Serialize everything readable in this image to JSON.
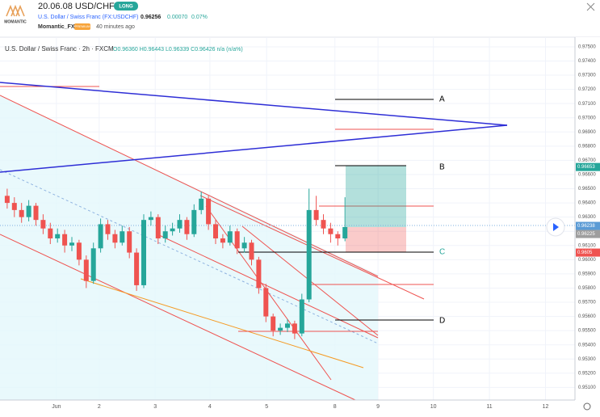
{
  "header": {
    "title": "20.06.08 USD/CHF",
    "badge": "LONG",
    "symbol": "U.S. Dollar / Swiss Franc (FX:USDCHF)",
    "price": "0.96256",
    "change": "0.00070",
    "change_pct": "0.07%",
    "logo": "MOMANTIC",
    "author": "Momantic_FX",
    "author_badge": "PREMIUM",
    "time": "40 minutes ago"
  },
  "chart_data": {
    "type": "candlestick",
    "title": "U.S. Dollar / Swiss Franc · 2h · FXCM",
    "subtitle": "O0.96360 H0.96443 L0.96339 C0.96426 n/a (n/a%)",
    "open": [
      0.9645,
      0.964,
      0.9635,
      0.963,
      0.9638,
      0.9628,
      0.9622,
      0.9615,
      0.9618,
      0.961,
      0.9612,
      0.96,
      0.9585,
      0.9608,
      0.9625,
      0.9618,
      0.9612,
      0.962,
      0.9605,
      0.9582,
      0.9628,
      0.963,
      0.9615,
      0.962,
      0.9622,
      0.9628,
      0.9618,
      0.9635,
      0.9643,
      0.9625,
      0.9615,
      0.9612,
      0.962,
      0.9608,
      0.9612,
      0.96,
      0.958,
      0.956,
      0.955,
      0.9552,
      0.9555,
      0.9548,
      0.9572,
      0.9635,
      0.9628,
      0.9622,
      0.9618,
      0.9615
    ],
    "high": [
      0.965,
      0.9644,
      0.964,
      0.9642,
      0.964,
      0.9632,
      0.9626,
      0.9622,
      0.9621,
      0.9616,
      0.9614,
      0.9603,
      0.9612,
      0.9629,
      0.9628,
      0.9621,
      0.9624,
      0.9623,
      0.9608,
      0.9632,
      0.9634,
      0.9632,
      0.9624,
      0.9626,
      0.9632,
      0.963,
      0.9639,
      0.9648,
      0.9645,
      0.9628,
      0.9618,
      0.9624,
      0.9622,
      0.9616,
      0.9614,
      0.9602,
      0.9583,
      0.9562,
      0.9555,
      0.9558,
      0.9557,
      0.9576,
      0.965,
      0.9645,
      0.9632,
      0.9626,
      0.962,
      0.9644
    ],
    "low": [
      0.9636,
      0.963,
      0.9626,
      0.9627,
      0.9624,
      0.9618,
      0.9611,
      0.9612,
      0.9605,
      0.9606,
      0.9596,
      0.958,
      0.9583,
      0.9605,
      0.9614,
      0.9608,
      0.961,
      0.9601,
      0.9578,
      0.958,
      0.9624,
      0.9611,
      0.9612,
      0.9617,
      0.9619,
      0.9614,
      0.9616,
      0.9632,
      0.9621,
      0.9611,
      0.9608,
      0.961,
      0.9604,
      0.9605,
      0.9596,
      0.9576,
      0.9556,
      0.9546,
      0.9547,
      0.9549,
      0.9544,
      0.9546,
      0.957,
      0.9624,
      0.9618,
      0.9612,
      0.961,
      0.9613
    ],
    "close": [
      0.964,
      0.9635,
      0.963,
      0.9638,
      0.9628,
      0.9622,
      0.9615,
      0.9618,
      0.961,
      0.9612,
      0.96,
      0.9585,
      0.9608,
      0.9625,
      0.9618,
      0.9612,
      0.962,
      0.9605,
      0.9582,
      0.9628,
      0.963,
      0.9615,
      0.962,
      0.9622,
      0.9628,
      0.9618,
      0.9635,
      0.9643,
      0.9625,
      0.9615,
      0.9612,
      0.962,
      0.9608,
      0.9612,
      0.96,
      0.958,
      0.956,
      0.955,
      0.9552,
      0.9555,
      0.9548,
      0.9572,
      0.9635,
      0.9628,
      0.9622,
      0.9618,
      0.9615,
      0.9623
    ],
    "up_color": "#26a69a",
    "down_color": "#ef5350",
    "ylim": [
      0.95011,
      0.97568
    ],
    "yticks": [
      {
        "value": 0.951,
        "label": "0.95100"
      },
      {
        "value": 0.952,
        "label": "0.95200"
      },
      {
        "value": 0.953,
        "label": "0.95300"
      },
      {
        "value": 0.954,
        "label": "0.95400"
      },
      {
        "value": 0.955,
        "label": "0.95500"
      },
      {
        "value": 0.956,
        "label": "0.95600"
      },
      {
        "value": 0.957,
        "label": "0.95700"
      },
      {
        "value": 0.958,
        "label": "0.95800"
      },
      {
        "value": 0.959,
        "label": "0.95900"
      },
      {
        "value": 0.96,
        "label": "0.96000"
      },
      {
        "value": 0.961,
        "label": "0.96100"
      },
      {
        "value": 0.962,
        "label": "0.96200"
      },
      {
        "value": 0.963,
        "label": "0.96300"
      },
      {
        "value": 0.964,
        "label": "0.96400"
      },
      {
        "value": 0.965,
        "label": "0.96500"
      },
      {
        "value": 0.966,
        "label": "0.96600"
      },
      {
        "value": 0.967,
        "label": "0.96700"
      },
      {
        "value": 0.968,
        "label": "0.96800"
      },
      {
        "value": 0.969,
        "label": "0.96900"
      },
      {
        "value": 0.97,
        "label": "0.97000"
      },
      {
        "value": 0.971,
        "label": "0.97100"
      },
      {
        "value": 0.972,
        "label": "0.97200"
      },
      {
        "value": 0.973,
        "label": "0.97300"
      },
      {
        "value": 0.974,
        "label": "0.97400"
      },
      {
        "value": 0.975,
        "label": "0.97500"
      }
    ],
    "xlim": [
      -1,
      79
    ],
    "xticks": [
      {
        "value": 6.85,
        "label": "Jun"
      },
      {
        "value": 12.8,
        "label": "2"
      },
      {
        "value": 20.6,
        "label": "3"
      },
      {
        "value": 28.2,
        "label": "4"
      },
      {
        "value": 36.1,
        "label": "5"
      },
      {
        "value": 45.6,
        "label": "8"
      },
      {
        "value": 51.6,
        "label": "9"
      },
      {
        "value": 59.3,
        "label": "10"
      },
      {
        "value": 67.1,
        "label": "11"
      },
      {
        "value": 74.9,
        "label": "12"
      }
    ],
    "grid": true,
    "price_tags": [
      {
        "value": 0.96653,
        "color": "#26a69a"
      },
      {
        "value": 0.96238,
        "color": "#5b9bd5"
      },
      {
        "value": 0.96225,
        "color": "#9e9e9e"
      },
      {
        "value": 0.9605,
        "color": "#ef5350"
      }
    ],
    "annotations": [
      "A",
      "B",
      "C",
      "D"
    ]
  }
}
